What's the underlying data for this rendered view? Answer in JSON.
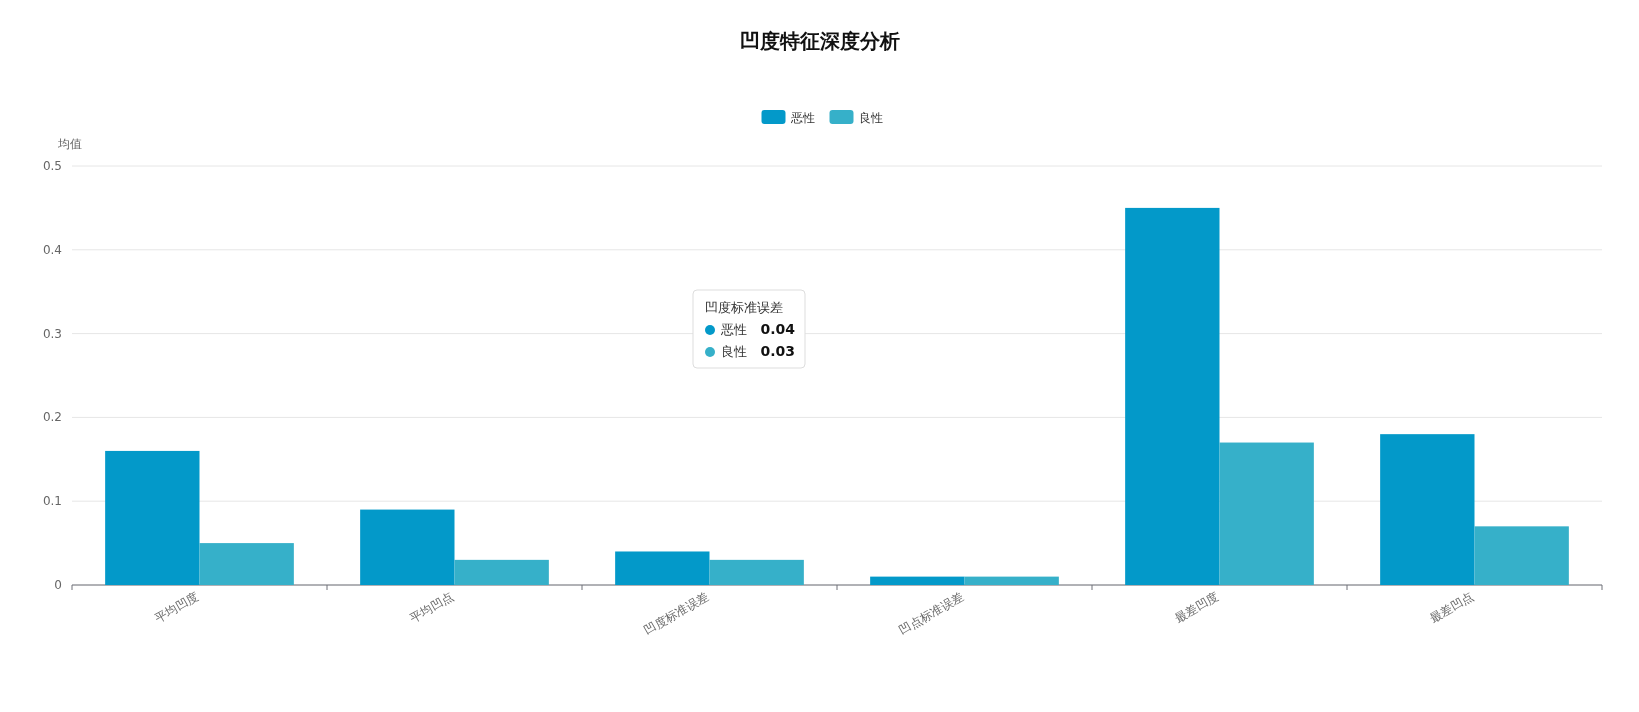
{
  "chart_data": {
    "type": "bar",
    "title": "凹度特征深度分析",
    "ylabel": "均值",
    "categories": [
      "平均凹度",
      "平均凹点",
      "凹度标准误差",
      "凹点标准误差",
      "最差凹度",
      "最差凹点"
    ],
    "series": [
      {
        "name": "恶性",
        "color": "#0399c9",
        "values": [
          0.16,
          0.09,
          0.04,
          0.01,
          0.45,
          0.18
        ]
      },
      {
        "name": "良性",
        "color": "#36b0c9",
        "values": [
          0.05,
          0.03,
          0.03,
          0.01,
          0.17,
          0.07
        ]
      }
    ],
    "annotations": [
      "凹度标准误差",
      "0.04",
      "0.03"
    ],
    "ylim": [
      0,
      0.5
    ],
    "yticks": [
      0,
      0.1,
      0.2,
      0.3,
      0.4,
      0.5
    ],
    "grid": "y",
    "legend": "top"
  }
}
